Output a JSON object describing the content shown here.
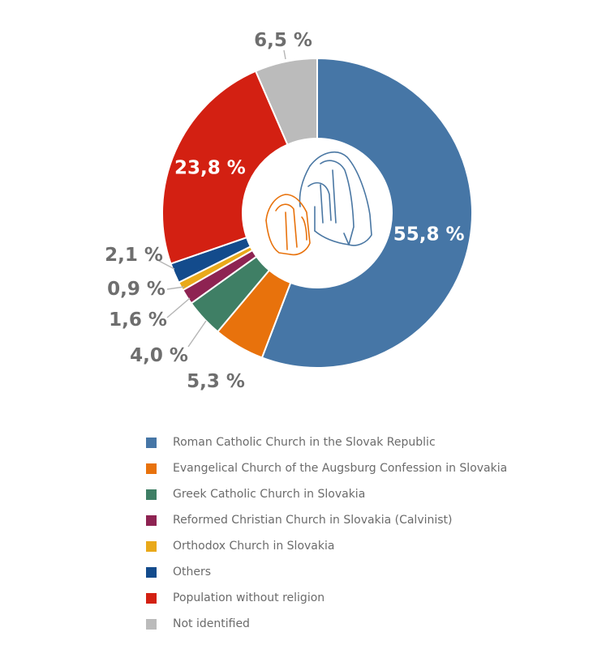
{
  "chart_data": {
    "type": "pie",
    "categories": [
      "Roman Catholic Church in the Slovak Republic",
      "Evangelical Church of the Augsburg Confession in Slovakia",
      "Greek Catholic Church in Slovakia",
      "Reformed Christian Church in Slovakia (Calvinist)",
      "Orthodox Church in Slovakia",
      "Others",
      "Population without religion",
      "Not identified"
    ],
    "values": [
      55.8,
      5.3,
      4.0,
      1.6,
      0.9,
      2.1,
      23.8,
      6.5
    ],
    "value_labels": [
      "55,8 %",
      "5,3 %",
      "4,0 %",
      "1,6 %",
      "0,9 %",
      "2,1 %",
      "23,8 %",
      "6,5 %"
    ],
    "colors": [
      "#4676a6",
      "#e8720c",
      "#3f7f65",
      "#8e2352",
      "#e9a91a",
      "#134b8c",
      "#d32012",
      "#bbbbbb"
    ],
    "donut": true,
    "legend_position": "bottom-left"
  },
  "center_icon": "praying-hands-icon"
}
